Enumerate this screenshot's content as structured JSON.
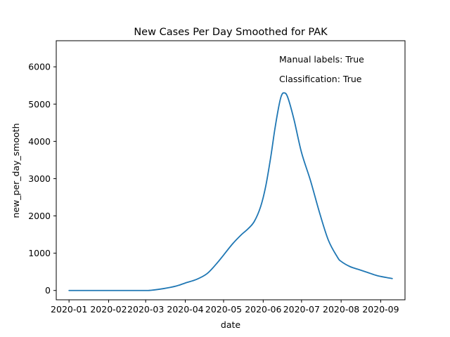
{
  "chart_data": {
    "type": "line",
    "title": "New Cases Per Day Smoothed for PAK",
    "xlabel": "date",
    "ylabel": "new_per_day_smooth",
    "x_ticks": [
      "2020-01",
      "2020-02",
      "2020-03",
      "2020-04",
      "2020-05",
      "2020-06",
      "2020-07",
      "2020-08",
      "2020-09"
    ],
    "y_ticks": [
      0,
      1000,
      2000,
      3000,
      4000,
      5000,
      6000
    ],
    "xlim": [
      "2019-12-22",
      "2020-09-20"
    ],
    "ylim": [
      -250,
      6700
    ],
    "grid": false,
    "annotations": [
      "Manual labels: True",
      "Classification: True"
    ],
    "color": "#1f77b4",
    "series": [
      {
        "x": [
          "2020-01-01",
          "2020-01-15",
          "2020-02-01",
          "2020-02-15",
          "2020-03-01",
          "2020-03-05",
          "2020-03-15",
          "2020-03-25",
          "2020-04-01",
          "2020-04-10",
          "2020-04-18",
          "2020-04-25",
          "2020-05-01",
          "2020-05-08",
          "2020-05-15",
          "2020-05-20",
          "2020-05-25",
          "2020-05-30",
          "2020-06-03",
          "2020-06-07",
          "2020-06-10",
          "2020-06-13",
          "2020-06-15",
          "2020-06-17",
          "2020-06-20",
          "2020-06-25",
          "2020-07-01",
          "2020-07-08",
          "2020-07-15",
          "2020-07-22",
          "2020-07-29",
          "2020-08-01",
          "2020-08-08",
          "2020-08-15",
          "2020-08-22",
          "2020-08-29",
          "2020-09-05",
          "2020-09-10"
        ],
        "y": [
          0,
          0,
          0,
          0,
          0,
          5,
          50,
          120,
          200,
          300,
          450,
          700,
          950,
          1250,
          1500,
          1650,
          1850,
          2250,
          2800,
          3600,
          4300,
          4900,
          5200,
          5300,
          5200,
          4600,
          3700,
          2950,
          2100,
          1350,
          900,
          780,
          640,
          560,
          480,
          400,
          350,
          320
        ]
      }
    ]
  }
}
